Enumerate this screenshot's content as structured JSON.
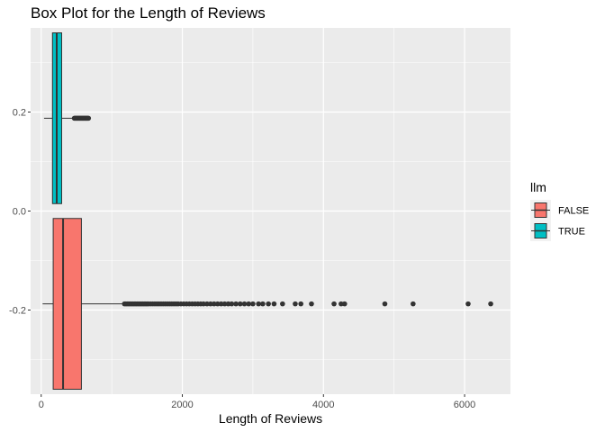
{
  "chart_data": {
    "type": "boxplot",
    "title": "Box Plot for the Length of Reviews",
    "xlabel": "Length of Reviews",
    "ylabel": "",
    "orientation": "horizontal",
    "xlim": [
      -150,
      6650
    ],
    "ylim": [
      -0.37,
      0.37
    ],
    "x_ticks": [
      0,
      2000,
      4000,
      6000
    ],
    "y_ticks": [
      -0.2,
      0.0,
      0.2
    ],
    "y_tick_labels": [
      "-0.2",
      "0.0",
      "0.2"
    ],
    "grid": true,
    "legend": {
      "title": "llm",
      "placement": "right"
    },
    "series": [
      {
        "name": "FALSE",
        "color": "#F8766D",
        "center": -0.1875,
        "box_half_height": 0.1725,
        "whisker_low": 20,
        "q1": 170,
        "median": 310,
        "q3": 570,
        "whisker_high": 1170,
        "outliers": [
          1180,
          1200,
          1220,
          1240,
          1260,
          1280,
          1300,
          1320,
          1340,
          1360,
          1380,
          1400,
          1420,
          1440,
          1460,
          1480,
          1500,
          1520,
          1550,
          1580,
          1610,
          1640,
          1670,
          1700,
          1730,
          1760,
          1790,
          1820,
          1850,
          1880,
          1910,
          1940,
          1980,
          2020,
          2060,
          2100,
          2140,
          2180,
          2220,
          2260,
          2300,
          2350,
          2400,
          2450,
          2500,
          2550,
          2600,
          2650,
          2700,
          2760,
          2820,
          2880,
          2940,
          3000,
          3080,
          3140,
          3220,
          3300,
          3420,
          3600,
          3680,
          3830,
          4150,
          4250,
          4300,
          4870,
          5270,
          6050,
          6370
        ]
      },
      {
        "name": "TRUE",
        "color": "#00BFC4",
        "center": 0.1875,
        "box_half_height": 0.1725,
        "whisker_low": 40,
        "q1": 160,
        "median": 220,
        "q3": 290,
        "whisker_high": 460,
        "outliers": [
          470,
          480,
          490,
          500,
          510,
          520,
          530,
          540,
          550,
          560,
          570,
          580,
          590,
          600,
          610,
          620,
          630,
          640,
          650,
          660,
          670
        ]
      }
    ]
  }
}
